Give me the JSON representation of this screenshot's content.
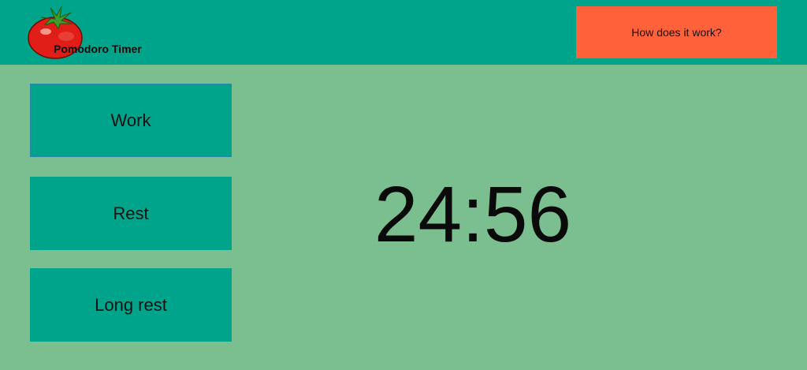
{
  "header": {
    "app_title": "Pomodoro Timer",
    "logo_icon": "tomato-icon",
    "help_button_label": "How does it work?"
  },
  "modes": [
    {
      "label": "Work",
      "active": true
    },
    {
      "label": "Rest",
      "active": false
    },
    {
      "label": "Long rest",
      "active": false
    }
  ],
  "timer": {
    "display": "24:56"
  },
  "colors": {
    "header_bg": "#00a48a",
    "page_bg": "#7bbe8f",
    "button_bg": "#00a48a",
    "help_button_bg": "#ff623b",
    "active_border": "#2b86a8"
  }
}
